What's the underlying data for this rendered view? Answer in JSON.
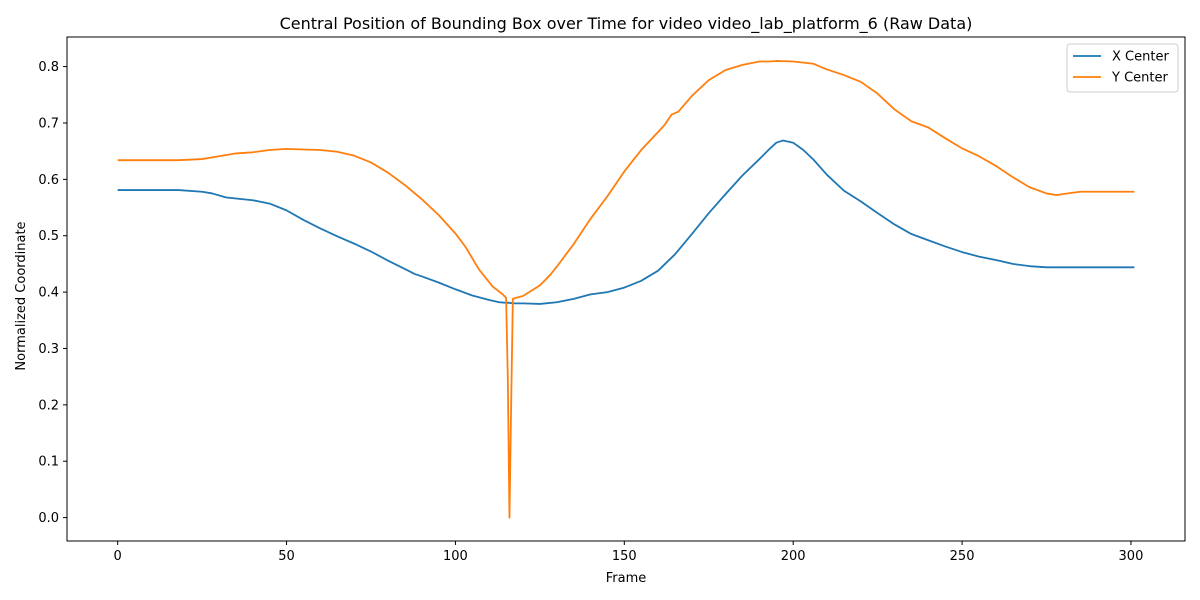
{
  "chart_data": {
    "type": "line",
    "title": "Central Position of Bounding Box over Time for video video_lab_platform_6 (Raw Data)",
    "xlabel": "Frame",
    "ylabel": "Normalized Coordinate",
    "xlim": [
      -15,
      316
    ],
    "ylim": [
      -0.0415,
      0.8525
    ],
    "x_ticks": [
      0,
      50,
      100,
      150,
      200,
      250,
      300
    ],
    "y_ticks": [
      0.0,
      0.1,
      0.2,
      0.3,
      0.4,
      0.5,
      0.6,
      0.7,
      0.8
    ],
    "x_tick_labels": [
      "0",
      "50",
      "100",
      "150",
      "200",
      "250",
      "300"
    ],
    "y_tick_labels": [
      "0.0",
      "0.1",
      "0.2",
      "0.3",
      "0.4",
      "0.5",
      "0.6",
      "0.7",
      "0.8"
    ],
    "grid": false,
    "legend_position": "top-right",
    "series": [
      {
        "name": "X Center",
        "color": "#1f77b4",
        "points": [
          [
            0,
            0.581
          ],
          [
            10,
            0.581
          ],
          [
            18,
            0.581
          ],
          [
            25,
            0.578
          ],
          [
            28,
            0.575
          ],
          [
            32,
            0.568
          ],
          [
            35,
            0.566
          ],
          [
            40,
            0.563
          ],
          [
            45,
            0.557
          ],
          [
            50,
            0.545
          ],
          [
            55,
            0.528
          ],
          [
            60,
            0.513
          ],
          [
            65,
            0.499
          ],
          [
            70,
            0.486
          ],
          [
            75,
            0.472
          ],
          [
            80,
            0.456
          ],
          [
            85,
            0.441
          ],
          [
            88,
            0.432
          ],
          [
            90,
            0.428
          ],
          [
            95,
            0.417
          ],
          [
            100,
            0.405
          ],
          [
            105,
            0.394
          ],
          [
            110,
            0.386
          ],
          [
            113,
            0.382
          ],
          [
            115,
            0.381
          ],
          [
            116,
            0.381
          ],
          [
            117,
            0.38
          ],
          [
            118,
            0.38
          ],
          [
            120,
            0.38
          ],
          [
            125,
            0.379
          ],
          [
            130,
            0.382
          ],
          [
            135,
            0.388
          ],
          [
            140,
            0.396
          ],
          [
            145,
            0.4
          ],
          [
            150,
            0.408
          ],
          [
            155,
            0.42
          ],
          [
            160,
            0.438
          ],
          [
            165,
            0.467
          ],
          [
            170,
            0.503
          ],
          [
            175,
            0.54
          ],
          [
            180,
            0.574
          ],
          [
            185,
            0.607
          ],
          [
            190,
            0.636
          ],
          [
            193,
            0.654
          ],
          [
            195,
            0.665
          ],
          [
            197,
            0.669
          ],
          [
            200,
            0.665
          ],
          [
            203,
            0.652
          ],
          [
            206,
            0.635
          ],
          [
            210,
            0.608
          ],
          [
            215,
            0.58
          ],
          [
            220,
            0.561
          ],
          [
            225,
            0.54
          ],
          [
            230,
            0.52
          ],
          [
            235,
            0.503
          ],
          [
            240,
            0.492
          ],
          [
            245,
            0.481
          ],
          [
            250,
            0.471
          ],
          [
            255,
            0.463
          ],
          [
            260,
            0.457
          ],
          [
            265,
            0.45
          ],
          [
            270,
            0.446
          ],
          [
            275,
            0.444
          ],
          [
            280,
            0.444
          ],
          [
            285,
            0.444
          ],
          [
            290,
            0.444
          ],
          [
            295,
            0.444
          ],
          [
            301,
            0.444
          ]
        ]
      },
      {
        "name": "Y Center",
        "color": "#ff7f0e",
        "points": [
          [
            0,
            0.634
          ],
          [
            10,
            0.634
          ],
          [
            18,
            0.634
          ],
          [
            25,
            0.636
          ],
          [
            28,
            0.639
          ],
          [
            32,
            0.643
          ],
          [
            35,
            0.646
          ],
          [
            40,
            0.648
          ],
          [
            45,
            0.652
          ],
          [
            50,
            0.654
          ],
          [
            55,
            0.653
          ],
          [
            60,
            0.652
          ],
          [
            65,
            0.649
          ],
          [
            70,
            0.642
          ],
          [
            75,
            0.63
          ],
          [
            80,
            0.612
          ],
          [
            85,
            0.59
          ],
          [
            90,
            0.565
          ],
          [
            95,
            0.537
          ],
          [
            100,
            0.504
          ],
          [
            103,
            0.48
          ],
          [
            107,
            0.44
          ],
          [
            111,
            0.41
          ],
          [
            114,
            0.396
          ],
          [
            115,
            0.39
          ],
          [
            115.5,
            0.25
          ],
          [
            116,
            0.0
          ],
          [
            116.5,
            0.2
          ],
          [
            117,
            0.388
          ],
          [
            118,
            0.39
          ],
          [
            120,
            0.393
          ],
          [
            125,
            0.412
          ],
          [
            128,
            0.43
          ],
          [
            130,
            0.445
          ],
          [
            135,
            0.485
          ],
          [
            140,
            0.53
          ],
          [
            145,
            0.57
          ],
          [
            150,
            0.614
          ],
          [
            155,
            0.652
          ],
          [
            160,
            0.684
          ],
          [
            162,
            0.697
          ],
          [
            164,
            0.715
          ],
          [
            166,
            0.72
          ],
          [
            170,
            0.748
          ],
          [
            175,
            0.776
          ],
          [
            180,
            0.794
          ],
          [
            185,
            0.803
          ],
          [
            190,
            0.809
          ],
          [
            193,
            0.809
          ],
          [
            195,
            0.81
          ],
          [
            200,
            0.809
          ],
          [
            203,
            0.807
          ],
          [
            206,
            0.805
          ],
          [
            210,
            0.795
          ],
          [
            215,
            0.785
          ],
          [
            220,
            0.773
          ],
          [
            225,
            0.752
          ],
          [
            230,
            0.724
          ],
          [
            235,
            0.703
          ],
          [
            240,
            0.692
          ],
          [
            245,
            0.673
          ],
          [
            250,
            0.655
          ],
          [
            255,
            0.641
          ],
          [
            260,
            0.624
          ],
          [
            265,
            0.604
          ],
          [
            270,
            0.586
          ],
          [
            275,
            0.575
          ],
          [
            278,
            0.572
          ],
          [
            280,
            0.574
          ],
          [
            285,
            0.578
          ],
          [
            290,
            0.578
          ],
          [
            295,
            0.578
          ],
          [
            301,
            0.578
          ]
        ]
      }
    ]
  }
}
